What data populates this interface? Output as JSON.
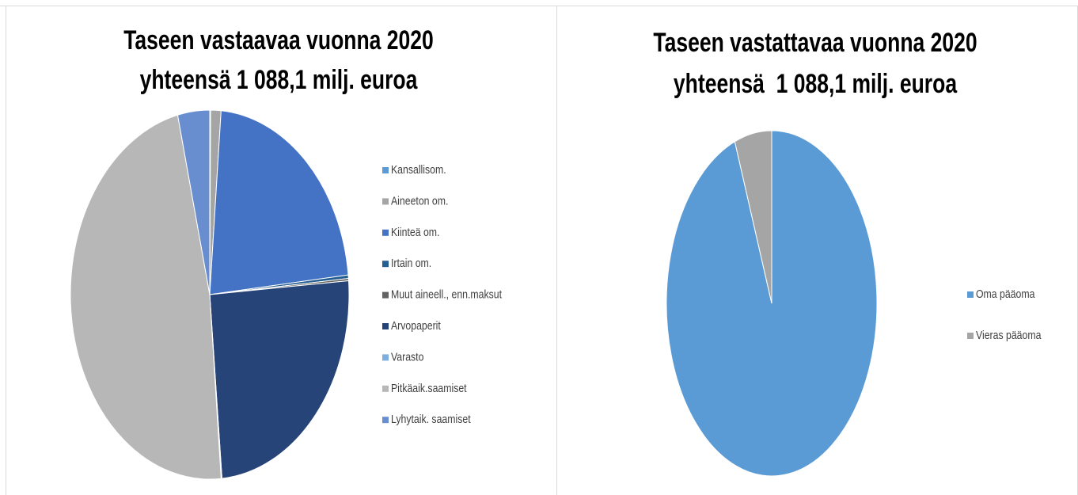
{
  "chart_data": [
    {
      "type": "pie",
      "title": "Taseen vastaavaa vuonna 2020",
      "subtitle": "yhteensä 1 088,1 milj. euroa",
      "categories": [
        "Kansallisom.",
        "Aineeton om.",
        "Kiinteä om.",
        "Irtain om.",
        "Muut aineell., enn.maksut",
        "Arvopaperit",
        "Varasto",
        "Pitkäaik.saamiset",
        "Lyhytaik. saamiset"
      ],
      "values": [
        0.1,
        1.2,
        22,
        0.3,
        0.2,
        24.8,
        0.1,
        47.6,
        3.7
      ],
      "colors": [
        "#5b9bd5",
        "#a5a5a5",
        "#4472c4",
        "#255e91",
        "#636363",
        "#264478",
        "#7cafdd",
        "#b7b7b7",
        "#698ed0"
      ],
      "legend": "right"
    },
    {
      "type": "pie",
      "title": "Taseen vastattavaa vuonna 2020",
      "subtitle": "yhteensä  1 088,1 milj. euroa",
      "categories": [
        "Oma pääoma",
        "Vieras pääoma"
      ],
      "values": [
        94.3,
        5.7
      ],
      "colors": [
        "#5b9bd5",
        "#a5a5a5"
      ],
      "legend": "right"
    }
  ]
}
